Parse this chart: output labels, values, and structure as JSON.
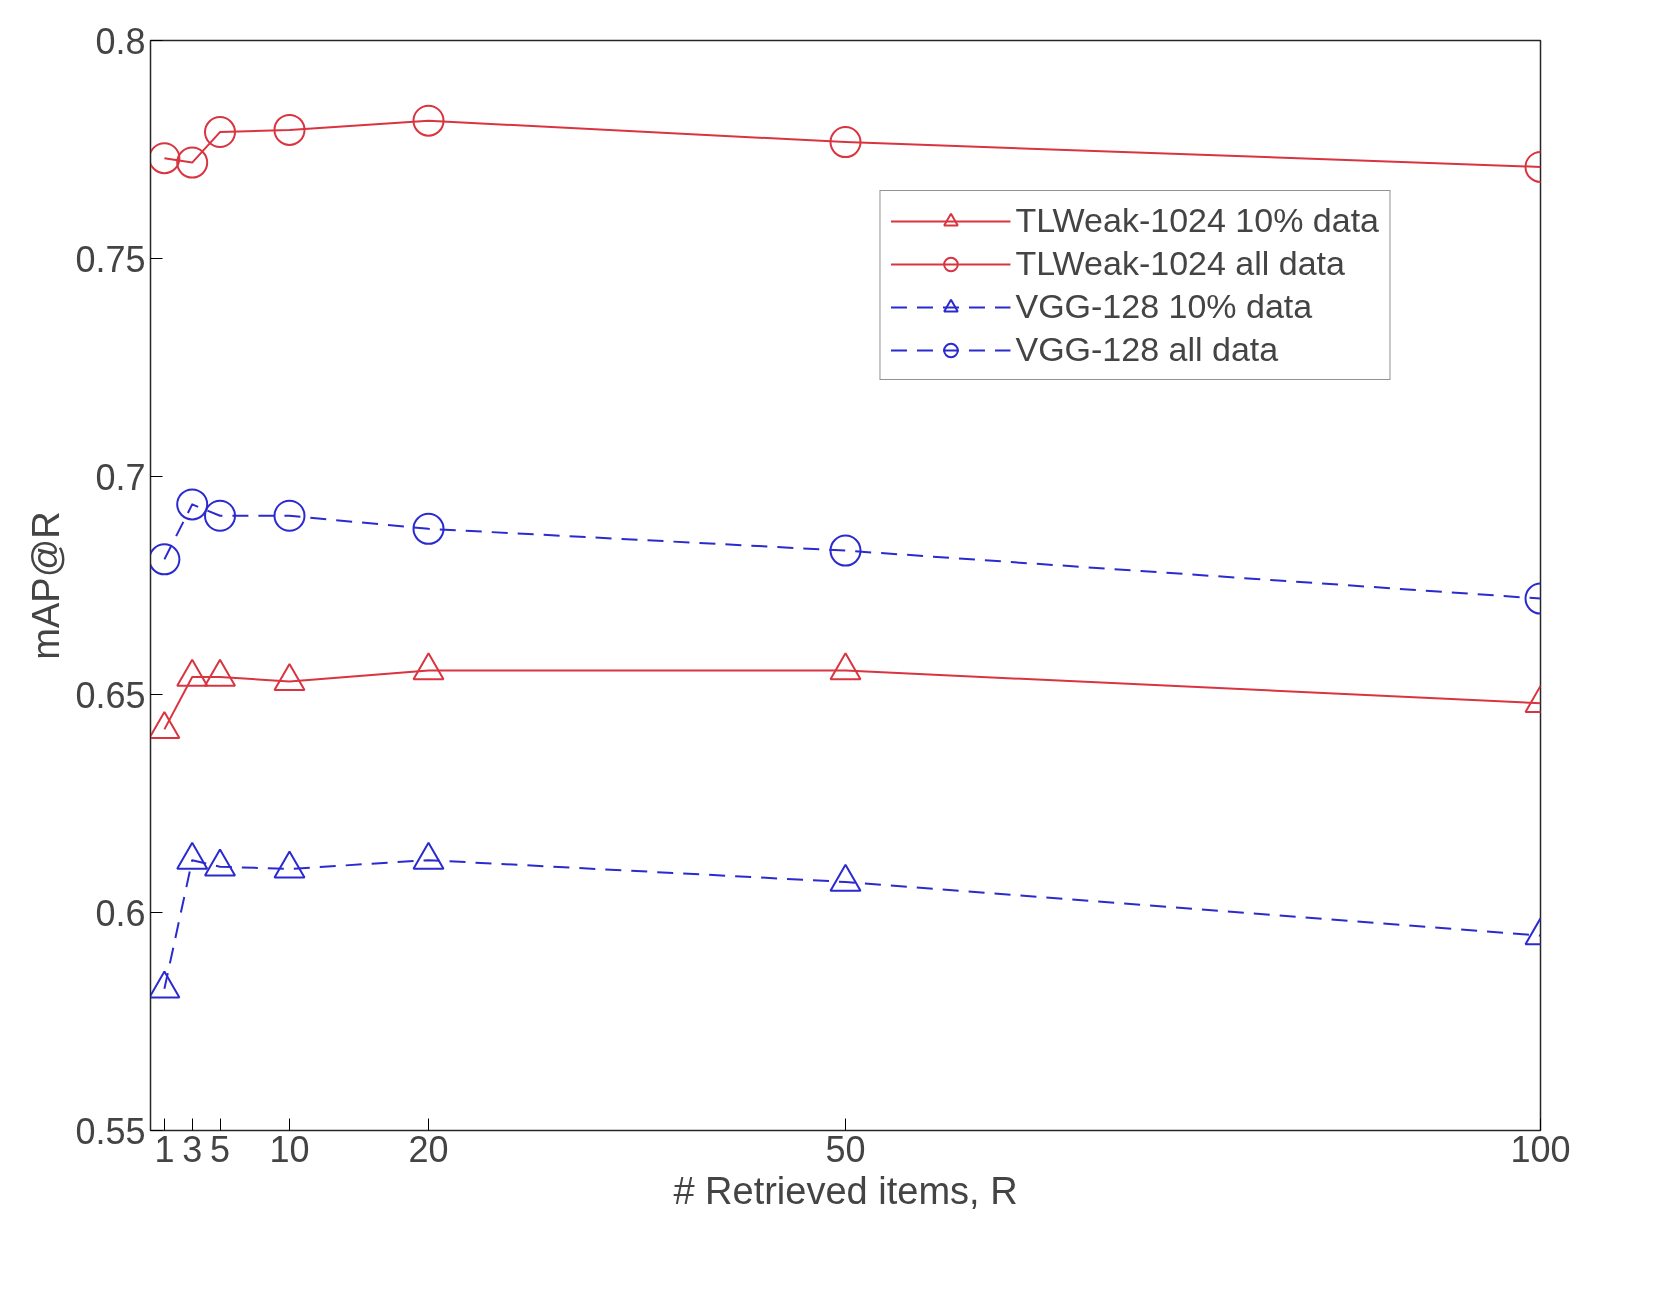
{
  "chart_data": {
    "type": "line",
    "xlabel": "# Retrieved items, R",
    "ylabel": "mAP@R",
    "x": [
      1,
      3,
      5,
      10,
      20,
      50,
      100
    ],
    "series": [
      {
        "name": "TLWeak-1024 10% data",
        "color": "#d9343f",
        "marker": "triangle",
        "line_style": "solid",
        "values": [
          0.642,
          0.654,
          0.654,
          0.653,
          0.6555,
          0.6555,
          0.648
        ]
      },
      {
        "name": "TLWeak-1024 all data",
        "color": "#d9343f",
        "marker": "circle",
        "line_style": "solid",
        "values": [
          0.773,
          0.772,
          0.779,
          0.7795,
          0.7816,
          0.7767,
          0.771
        ]
      },
      {
        "name": "VGG-128 10% data",
        "color": "#2a2ad0",
        "marker": "triangle",
        "line_style": "dashed",
        "values": [
          0.5825,
          0.612,
          0.6105,
          0.61,
          0.612,
          0.607,
          0.5947
        ]
      },
      {
        "name": "VGG-128 all data",
        "color": "#2a2ad0",
        "marker": "circle",
        "line_style": "dashed",
        "values": [
          0.681,
          0.6936,
          0.691,
          0.691,
          0.688,
          0.683,
          0.672
        ]
      }
    ],
    "xlim": [
      0,
      100
    ],
    "xticks": [
      1,
      3,
      5,
      10,
      20,
      50,
      100
    ],
    "ylim": [
      0.55,
      0.8
    ],
    "yticks": [
      0.55,
      0.6,
      0.65,
      0.7,
      0.75,
      0.8
    ],
    "grid": false,
    "legend": "top right"
  }
}
